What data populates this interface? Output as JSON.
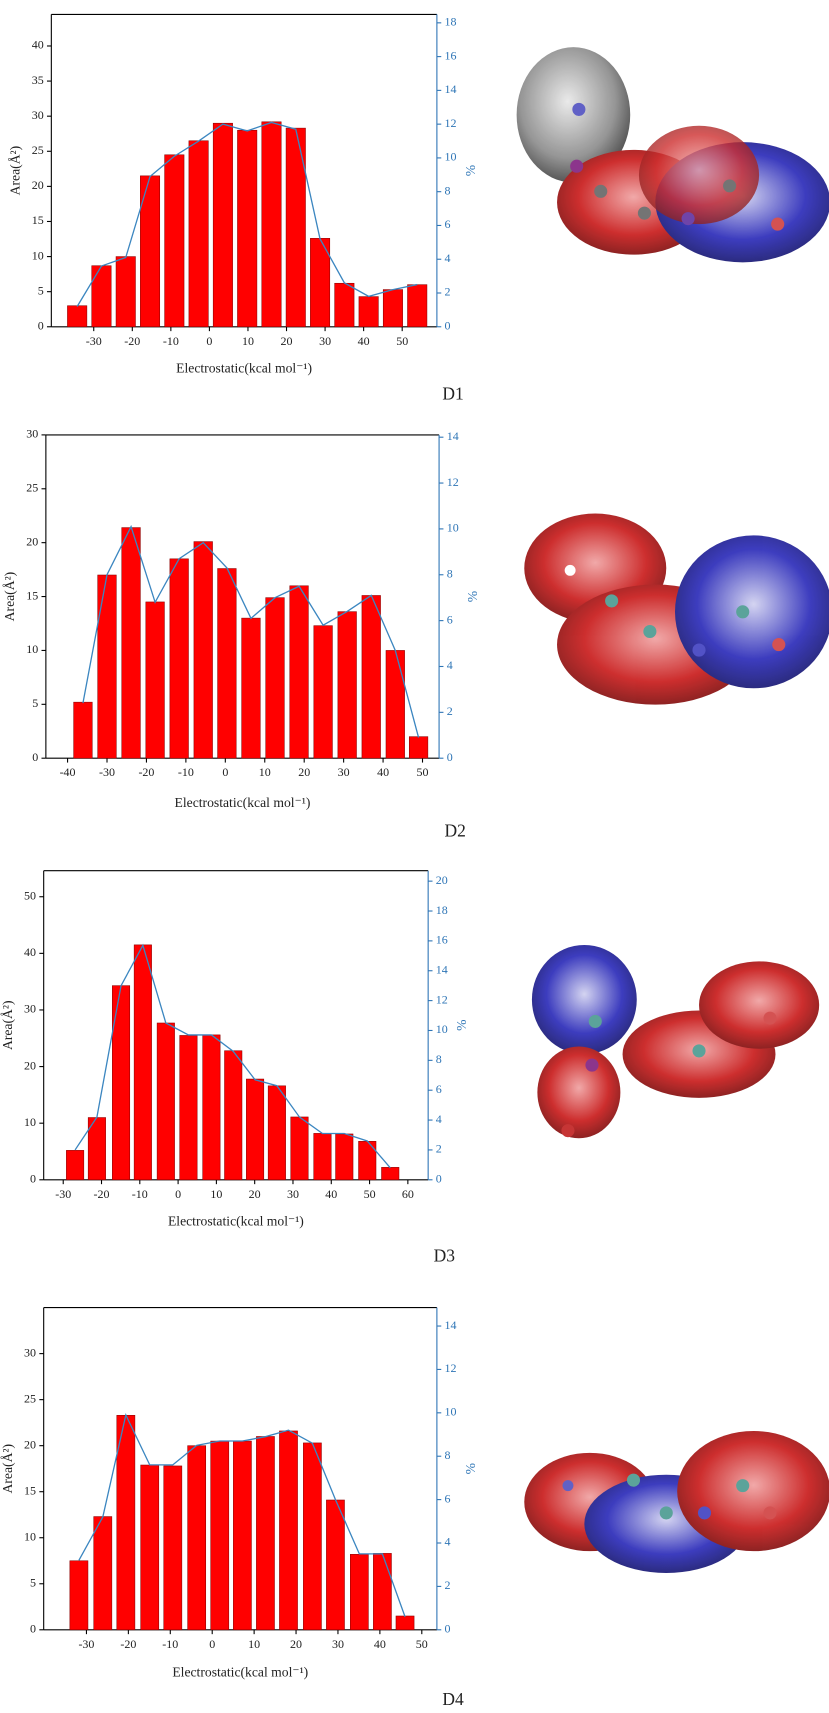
{
  "chart_data": [
    {
      "type": "bar",
      "label": "D1",
      "xlabel": "Electrostatic(kcal mol⁻¹)",
      "ylabel": "Area(Å²)",
      "y2label": "%",
      "x": [
        -34.3,
        -28,
        -21.7,
        -15.4,
        -9.1,
        -2.8,
        3.5,
        9.8,
        16.1,
        22.4,
        28.7,
        35,
        41.3,
        47.6,
        53.9
      ],
      "xlim": [
        -41,
        59
      ],
      "xticks": [
        -30,
        -20,
        -10,
        0,
        10,
        20,
        30,
        40,
        50
      ],
      "ylim": [
        0,
        44.5
      ],
      "yticks": [
        0,
        5,
        10,
        15,
        20,
        25,
        30,
        35,
        40
      ],
      "y2lim": [
        0,
        18.5
      ],
      "y2ticks": [
        0,
        2,
        4,
        6,
        8,
        10,
        12,
        14,
        16,
        18
      ],
      "series": [
        {
          "type": "bar",
          "color": "#ff0000",
          "values": [
            3,
            8.7,
            10,
            21.5,
            24.5,
            26.5,
            29,
            28,
            29.2,
            28.3,
            12.6,
            6.2,
            4.3,
            5.3,
            6
          ]
        },
        {
          "type": "line",
          "color": "#3b86c0",
          "axis": "y2",
          "values": [
            1.2,
            3.6,
            4.1,
            8.9,
            10.1,
            11,
            12,
            11.6,
            12.1,
            11.7,
            5.2,
            2.6,
            1.8,
            2.2,
            2.5
          ]
        }
      ]
    },
    {
      "type": "bar",
      "label": "D2",
      "xlabel": "Electrostatic(kcal mol⁻¹)",
      "ylabel": "Area(Å²)",
      "y2label": "%",
      "x": [
        -36.1,
        -30,
        -23.9,
        -17.8,
        -11.7,
        -5.6,
        0.4,
        6.5,
        12.6,
        18.7,
        24.8,
        30.9,
        37,
        43.1,
        49
      ],
      "xlim": [
        -45.5,
        54.2
      ],
      "xticks": [
        -40,
        -30,
        -20,
        -10,
        0,
        10,
        20,
        30,
        40,
        50
      ],
      "ylim": [
        0,
        30
      ],
      "yticks": [
        0,
        5,
        10,
        15,
        20,
        25,
        30
      ],
      "y2lim": [
        0,
        14.1
      ],
      "y2ticks": [
        0,
        2,
        4,
        6,
        8,
        10,
        12,
        14
      ],
      "series": [
        {
          "type": "bar",
          "color": "#ff0000",
          "values": [
            5.2,
            17,
            21.4,
            14.5,
            18.5,
            20.1,
            17.6,
            13,
            14.9,
            16,
            12.3,
            13.6,
            15.1,
            10,
            2
          ]
        },
        {
          "type": "line",
          "color": "#3b86c0",
          "axis": "y2",
          "values": [
            2.4,
            8,
            10.1,
            6.8,
            8.7,
            9.4,
            8.3,
            6.1,
            7,
            7.5,
            5.8,
            6.4,
            7.1,
            4.7,
            0.9
          ]
        }
      ]
    },
    {
      "type": "bar",
      "label": "D3",
      "xlabel": "Electrostatic(kcal mol⁻¹)",
      "ylabel": "Area(Å²)",
      "y2label": "%",
      "x": [
        -26.9,
        -21.2,
        -14.9,
        -9.2,
        -3.2,
        2.7,
        8.7,
        14.4,
        20.1,
        25.8,
        31.7,
        37.7,
        43.4,
        49.4,
        55.4
      ],
      "xlim": [
        -35.1,
        65.3
      ],
      "xticks": [
        -30,
        -20,
        -10,
        0,
        10,
        20,
        30,
        40,
        50,
        60
      ],
      "ylim": [
        0,
        54.6
      ],
      "yticks": [
        0,
        10,
        20,
        30,
        40,
        50
      ],
      "y2lim": [
        0,
        20.7
      ],
      "y2ticks": [
        0,
        2,
        4,
        6,
        8,
        10,
        12,
        14,
        16,
        18,
        20
      ],
      "series": [
        {
          "type": "bar",
          "color": "#ff0000",
          "values": [
            5.2,
            11,
            34.3,
            41.5,
            27.7,
            25.5,
            25.6,
            22.8,
            17.8,
            16.6,
            11.1,
            8.2,
            8.1,
            6.8,
            2.2
          ]
        },
        {
          "type": "line",
          "color": "#3b86c0",
          "axis": "y2",
          "values": [
            2,
            4.2,
            13,
            15.7,
            10.5,
            9.7,
            9.7,
            8.6,
            6.7,
            6.3,
            4.2,
            3.1,
            3.1,
            2.6,
            0.8
          ]
        }
      ]
    },
    {
      "type": "bar",
      "label": "D4",
      "xlabel": "Electrostatic(kcal mol⁻¹)",
      "ylabel": "Area(Å²)",
      "y2label": "%",
      "x": [
        -31.8,
        -26.1,
        -20.6,
        -14.9,
        -9.4,
        -3.7,
        1.8,
        7.2,
        12.7,
        18.2,
        23.9,
        29.4,
        35.1,
        40.6,
        46
      ],
      "xlim": [
        -40.2,
        53.6
      ],
      "xticks": [
        -30,
        -20,
        -10,
        0,
        10,
        20,
        30,
        40,
        50
      ],
      "ylim": [
        0,
        35
      ],
      "yticks": [
        0,
        5,
        10,
        15,
        20,
        25,
        30
      ],
      "y2lim": [
        0,
        14.85
      ],
      "y2ticks": [
        0,
        2,
        4,
        6,
        8,
        10,
        12,
        14
      ],
      "series": [
        {
          "type": "bar",
          "color": "#ff0000",
          "values": [
            7.5,
            12.3,
            23.3,
            17.9,
            17.8,
            20,
            20.5,
            20.5,
            21,
            21.6,
            20.3,
            14.1,
            8.2,
            8.3,
            1.5
          ]
        },
        {
          "type": "line",
          "color": "#3b86c0",
          "axis": "y2",
          "values": [
            3.2,
            5.2,
            9.9,
            7.6,
            7.6,
            8.5,
            8.7,
            8.7,
            8.9,
            9.2,
            8.6,
            6,
            3.5,
            3.5,
            0.6
          ]
        }
      ]
    }
  ]
}
